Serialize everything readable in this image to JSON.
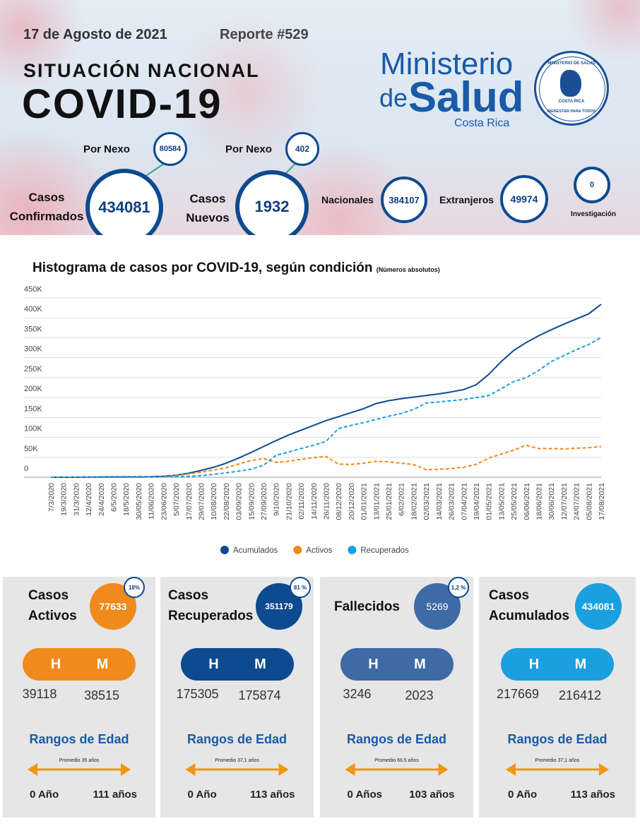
{
  "header": {
    "date": "17 de Agosto de 2021",
    "report": "Reporte #529",
    "subtitle": "SITUACIÓN NACIONAL",
    "title": "COVID-19",
    "logo": {
      "line1": "Ministerio",
      "de": "de",
      "salud": "Salud",
      "country": "Costa Rica"
    },
    "seal": {
      "top": "MINISTERIO DE SALUD",
      "middle": "COSTA RICA",
      "bottom": "BIENESTAR PARA TODOS"
    }
  },
  "stats": {
    "confirmed": {
      "label": [
        "Casos",
        "Confirmados"
      ],
      "value": 434081,
      "nexo_label": "Por Nexo",
      "nexo": 80584
    },
    "new": {
      "label": [
        "Casos",
        "Nuevos"
      ],
      "value": 1932,
      "nexo_label": "Por Nexo",
      "nexo": 402
    },
    "national": {
      "label": "Nacionales",
      "value": 384107
    },
    "foreign": {
      "label": "Extranjeros",
      "value": 49974
    },
    "investigation": {
      "label": "Investigación",
      "value": 0
    }
  },
  "chart_data": {
    "type": "line",
    "title": "Histograma de casos por COVID-19, según condición",
    "subtitle": "(Números absolutos)",
    "categories": [
      "7/3/2020",
      "19/3/2020",
      "31/3/2020",
      "12/4/2020",
      "24/4/2020",
      "6/5/2020",
      "18/5/2020",
      "30/05/2020",
      "11/06/2020",
      "23/06/2020",
      "5/07/2020",
      "17/07/2020",
      "29/07/2020",
      "10/08/2020",
      "22/08/2020",
      "03/09/2020",
      "15/09/2020",
      "27/09/2020",
      "9/10/2020",
      "21/10/2020",
      "02/11/2020",
      "14/11/2020",
      "26/11/2020",
      "08/12/2020",
      "20/12/2020",
      "01/01/2021",
      "13/01/2021",
      "25/01/2021",
      "6/02/2021",
      "18/02/2021",
      "02/03/2021",
      "14/03/2021",
      "26/03/2021",
      "07/04/2021",
      "19/04/2021",
      "01/05/2021",
      "13/05/2021",
      "25/05/2021",
      "06/06/2021",
      "18/06/2021",
      "30/06/2021",
      "12/07/2021",
      "24/07/2021",
      "05/08/2021",
      "17/08/2021"
    ],
    "series": [
      {
        "name": "Acumulados",
        "color": "#0d4a8f",
        "style": "solid",
        "values": [
          0,
          0,
          0,
          500,
          700,
          800,
          900,
          1000,
          1500,
          2500,
          5000,
          10000,
          17000,
          25000,
          35000,
          48000,
          62000,
          77000,
          92000,
          106000,
          118000,
          130000,
          142000,
          152000,
          162000,
          172000,
          185000,
          192000,
          197000,
          201000,
          205000,
          209000,
          214000,
          220000,
          232000,
          258000,
          290000,
          318000,
          338000,
          355000,
          370000,
          384000,
          397000,
          410000,
          434000
        ]
      },
      {
        "name": "Activos",
        "color": "#f08a1c",
        "style": "dashed",
        "values": [
          0,
          0,
          0,
          0,
          0,
          0,
          0,
          0,
          500,
          1500,
          4000,
          8000,
          13000,
          18000,
          24000,
          33000,
          42000,
          47000,
          37000,
          40000,
          45000,
          49000,
          52000,
          33000,
          32000,
          35000,
          40000,
          39000,
          35000,
          32000,
          19000,
          20000,
          22000,
          25000,
          32000,
          48000,
          58000,
          68000,
          80000,
          72000,
          72000,
          71000,
          73000,
          74000,
          77000
        ]
      },
      {
        "name": "Recuperados",
        "color": "#1aa0e0",
        "style": "dashed",
        "values": [
          0,
          0,
          0,
          0,
          0,
          0,
          0,
          500,
          1000,
          1000,
          1000,
          2000,
          4000,
          7000,
          11000,
          15000,
          20000,
          30000,
          55000,
          63000,
          72000,
          80000,
          90000,
          122000,
          130000,
          137000,
          145000,
          153000,
          160000,
          170000,
          186000,
          189000,
          192000,
          195000,
          200000,
          205000,
          222000,
          240000,
          250000,
          268000,
          290000,
          305000,
          320000,
          333000,
          351000
        ]
      }
    ],
    "ylim": [
      0,
      450000
    ],
    "yticks": [
      0,
      {
        "value": 50000,
        "label": "50K"
      },
      {
        "value": 100000,
        "label": "100K"
      },
      {
        "value": 150000,
        "label": "150K"
      },
      {
        "value": 200000,
        "label": "200K"
      },
      {
        "value": 250000,
        "label": "250K"
      },
      {
        "value": 300000,
        "label": "300K"
      },
      {
        "value": 350000,
        "label": "350K"
      },
      {
        "value": 400000,
        "label": "400K"
      },
      {
        "value": 450000,
        "label": "450K"
      }
    ],
    "grid": true,
    "legend": "bottom"
  },
  "cards": [
    {
      "title": [
        "Casos",
        "Activos"
      ],
      "value": 77633,
      "badge": "18%",
      "color": "#f08a1c",
      "h_label": "H",
      "m_label": "M",
      "h": 39118,
      "m": 38515,
      "age_title": "Rangos de Edad",
      "avg": "Promedio 35 años",
      "min": "0 Año",
      "max": "111 años"
    },
    {
      "title": [
        "Casos",
        "Recuperados"
      ],
      "value": 351179,
      "badge": "81 %",
      "color": "#0d4a8f",
      "h_label": "H",
      "m_label": "M",
      "h": 175305,
      "m": 175874,
      "age_title": "Rangos de Edad",
      "avg": "Promedio 37,1 años",
      "min": "0 Año",
      "max": "113 años"
    },
    {
      "title": [
        "Fallecidos"
      ],
      "value": 5269,
      "badge": "1,2 %",
      "color": "#3e6aa6",
      "h_label": "H",
      "m_label": "M",
      "h": 3246,
      "m": 2023,
      "age_title": "Rangos de Edad",
      "avg": "Promedio 66.5 años",
      "min": "0 Años",
      "max": "103 años"
    },
    {
      "title": [
        "Casos",
        "Acumulados"
      ],
      "value": 434081,
      "color": "#1aa0e0",
      "h_label": "H",
      "m_label": "M",
      "h": 217669,
      "m": 216412,
      "age_title": "Rangos de Edad",
      "avg": "Promedio 37,1 años",
      "min": "0 Año",
      "max": "113 años"
    }
  ]
}
